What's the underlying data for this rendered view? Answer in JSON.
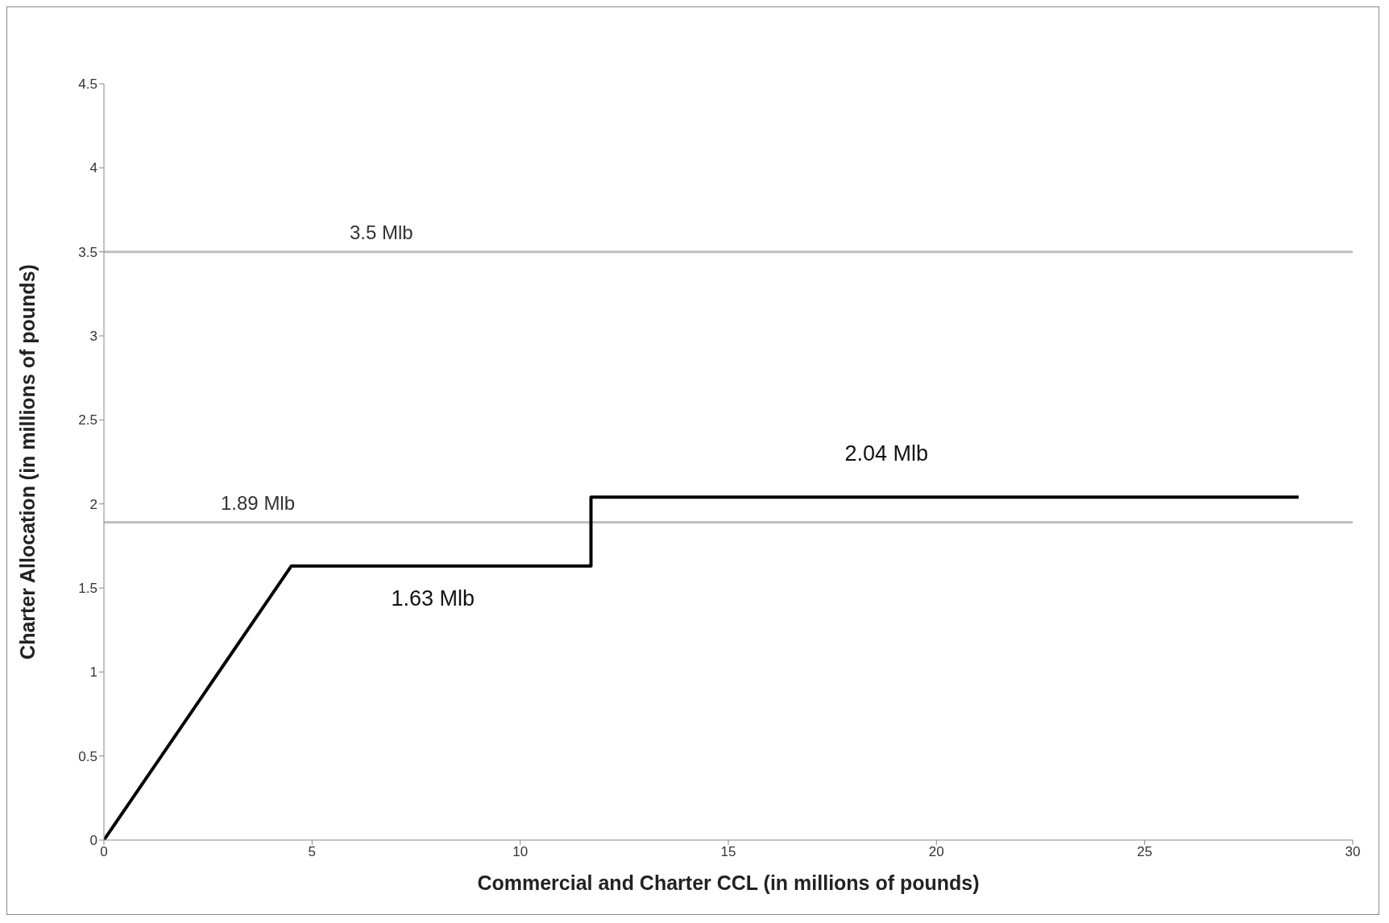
{
  "chart_data": {
    "type": "line",
    "xlabel": "Commercial and Charter CCL (in millions of pounds)",
    "ylabel": "Charter Allocation (in millions of pounds)",
    "x": [
      0,
      4.5,
      11.7,
      11.7,
      28.7
    ],
    "series": [
      {
        "color": "#000000",
        "values": [
          0,
          1.63,
          1.63,
          2.04,
          2.04
        ]
      }
    ],
    "xlim": [
      0,
      30
    ],
    "xticks": [
      0,
      5,
      10,
      15,
      20,
      25,
      30
    ],
    "ylim": [
      0,
      4.5
    ],
    "yticks": [
      0,
      0.5,
      1,
      1.5,
      2,
      2.5,
      3,
      3.5,
      4,
      4.5
    ],
    "grid": false,
    "legend": false,
    "marker": "none",
    "line_style": "solid",
    "ref_lines": [
      {
        "axis": "y",
        "value": 3.5,
        "label": "3.5 Mlb",
        "color": "#c0c0c0"
      },
      {
        "axis": "y",
        "value": 1.89,
        "label": "1.89 Mlb",
        "color": "#c0c0c0"
      }
    ],
    "annotations": [
      {
        "text": "1.63 Mlb",
        "x": 7.9,
        "y": 1.63
      },
      {
        "text": "2.04 Mlb",
        "x": 18.8,
        "y": 2.04
      }
    ]
  }
}
